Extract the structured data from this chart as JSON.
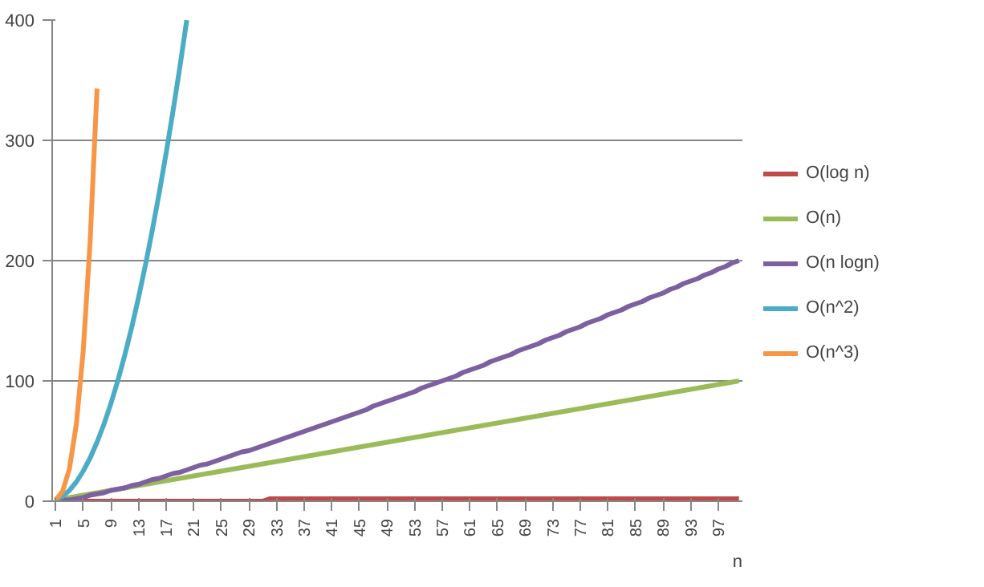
{
  "chart_data": {
    "type": "line",
    "xlabel": "n",
    "categories": [
      "1",
      null,
      null,
      null,
      "5",
      null,
      null,
      null,
      "9",
      null,
      null,
      null,
      "13",
      null,
      null,
      null,
      "17",
      null,
      null,
      null,
      "21",
      null,
      null,
      null,
      "25",
      null,
      null,
      null,
      "29",
      null,
      null,
      null,
      "33",
      null,
      null,
      null,
      "37",
      null,
      null,
      null,
      "41",
      null,
      null,
      null,
      "45",
      null,
      null,
      null,
      "49",
      null,
      null,
      null,
      "53",
      null,
      null,
      null,
      "57",
      null,
      null,
      null,
      "61",
      null,
      null,
      null,
      "65",
      null,
      null,
      null,
      "69",
      null,
      null,
      null,
      "73",
      null,
      null,
      null,
      "77",
      null,
      null,
      null,
      "81",
      null,
      null,
      null,
      "85",
      null,
      null,
      null,
      "89",
      null,
      null,
      null,
      "93",
      null,
      null,
      null,
      "97",
      null,
      null,
      null
    ],
    "ylim": [
      0,
      400
    ],
    "yticks": [
      0,
      100,
      200,
      300,
      400
    ],
    "grid": "y",
    "legend": "right",
    "marker": "none",
    "line_style": "solid",
    "series": [
      {
        "name": "O(log n)",
        "color": "#be4b48",
        "values": [
          null,
          null,
          0,
          0,
          0,
          0,
          0,
          0,
          0,
          0,
          0,
          0,
          0,
          0,
          0,
          0,
          0,
          0,
          0,
          0,
          0,
          0,
          0,
          0,
          0,
          0,
          0,
          0,
          0,
          0,
          0,
          2,
          2,
          2,
          2,
          2,
          2,
          2,
          2,
          2,
          2,
          2,
          2,
          2,
          2,
          2,
          2,
          2,
          2,
          2,
          2,
          2,
          2,
          2,
          2,
          2,
          2,
          2,
          2,
          2,
          2,
          2,
          2,
          2,
          2,
          2,
          2,
          2,
          2,
          2,
          2,
          2,
          2,
          2,
          2,
          2,
          2,
          2,
          2,
          2,
          2,
          2,
          2,
          2,
          2,
          2,
          2,
          2,
          2,
          2,
          2,
          2,
          2,
          2,
          2,
          2,
          2,
          2,
          2,
          2
        ]
      },
      {
        "name": "O(n)",
        "color": "#9bbb59",
        "values": [
          1,
          2,
          3,
          4,
          5,
          6,
          7,
          8,
          9,
          10,
          11,
          12,
          13,
          14,
          15,
          16,
          17,
          18,
          19,
          20,
          21,
          22,
          23,
          24,
          25,
          26,
          27,
          28,
          29,
          30,
          31,
          32,
          33,
          34,
          35,
          36,
          37,
          38,
          39,
          40,
          41,
          42,
          43,
          44,
          45,
          46,
          47,
          48,
          49,
          50,
          51,
          52,
          53,
          54,
          55,
          56,
          57,
          58,
          59,
          60,
          61,
          62,
          63,
          64,
          65,
          66,
          67,
          68,
          69,
          70,
          71,
          72,
          73,
          74,
          75,
          76,
          77,
          78,
          79,
          80,
          81,
          82,
          83,
          84,
          85,
          86,
          87,
          88,
          89,
          90,
          91,
          92,
          93,
          94,
          95,
          96,
          97,
          98,
          99,
          100
        ]
      },
      {
        "name": "O(n logn)",
        "color": "#7d60a0",
        "values": [
          0,
          1,
          1,
          2,
          3,
          5,
          6,
          7,
          9,
          10,
          11,
          13,
          14,
          16,
          18,
          19,
          21,
          23,
          24,
          26,
          28,
          30,
          31,
          33,
          35,
          37,
          39,
          41,
          42,
          44,
          46,
          48,
          50,
          52,
          54,
          56,
          58,
          60,
          62,
          64,
          66,
          68,
          70,
          72,
          74,
          76,
          79,
          81,
          83,
          85,
          87,
          89,
          91,
          94,
          96,
          98,
          100,
          102,
          104,
          107,
          109,
          111,
          113,
          116,
          118,
          120,
          122,
          125,
          127,
          129,
          131,
          134,
          136,
          138,
          141,
          143,
          145,
          148,
          150,
          152,
          155,
          157,
          159,
          162,
          164,
          166,
          169,
          171,
          173,
          176,
          178,
          181,
          183,
          185,
          188,
          190,
          193,
          195,
          198,
          200
        ]
      },
      {
        "name": "O(n^2)",
        "color": "#4bacc6",
        "values": [
          1,
          4,
          9,
          16,
          25,
          36,
          49,
          64,
          81,
          100,
          121,
          144,
          169,
          196,
          225,
          256,
          289,
          324,
          361,
          400,
          null,
          null,
          null,
          null,
          null,
          null,
          null,
          null,
          null,
          null,
          null,
          null,
          null,
          null,
          null,
          null,
          null,
          null,
          null,
          null,
          null,
          null,
          null,
          null,
          null,
          null,
          null,
          null,
          null,
          null,
          null,
          null,
          null,
          null,
          null,
          null,
          null,
          null,
          null,
          null,
          null,
          null,
          null,
          null,
          null,
          null,
          null,
          null,
          null,
          null,
          null,
          null,
          null,
          null,
          null,
          null,
          null,
          null,
          null,
          null,
          null,
          null,
          null,
          null,
          null,
          null,
          null,
          null,
          null,
          null,
          null,
          null,
          null,
          null,
          null,
          null,
          null,
          null,
          null,
          null
        ]
      },
      {
        "name": "O(n^3)",
        "color": "#f79646",
        "values": [
          1,
          8,
          27,
          64,
          125,
          216,
          343,
          null,
          null,
          null,
          null,
          null,
          null,
          null,
          null,
          null,
          null,
          null,
          null,
          null,
          null,
          null,
          null,
          null,
          null,
          null,
          null,
          null,
          null,
          null,
          null,
          null,
          null,
          null,
          null,
          null,
          null,
          null,
          null,
          null,
          null,
          null,
          null,
          null,
          null,
          null,
          null,
          null,
          null,
          null,
          null,
          null,
          null,
          null,
          null,
          null,
          null,
          null,
          null,
          null,
          null,
          null,
          null,
          null,
          null,
          null,
          null,
          null,
          null,
          null,
          null,
          null,
          null,
          null,
          null,
          null,
          null,
          null,
          null,
          null,
          null,
          null,
          null,
          null,
          null,
          null,
          null,
          null,
          null,
          null,
          null,
          null,
          null,
          null,
          null,
          null,
          null,
          null,
          null,
          null
        ]
      }
    ]
  }
}
